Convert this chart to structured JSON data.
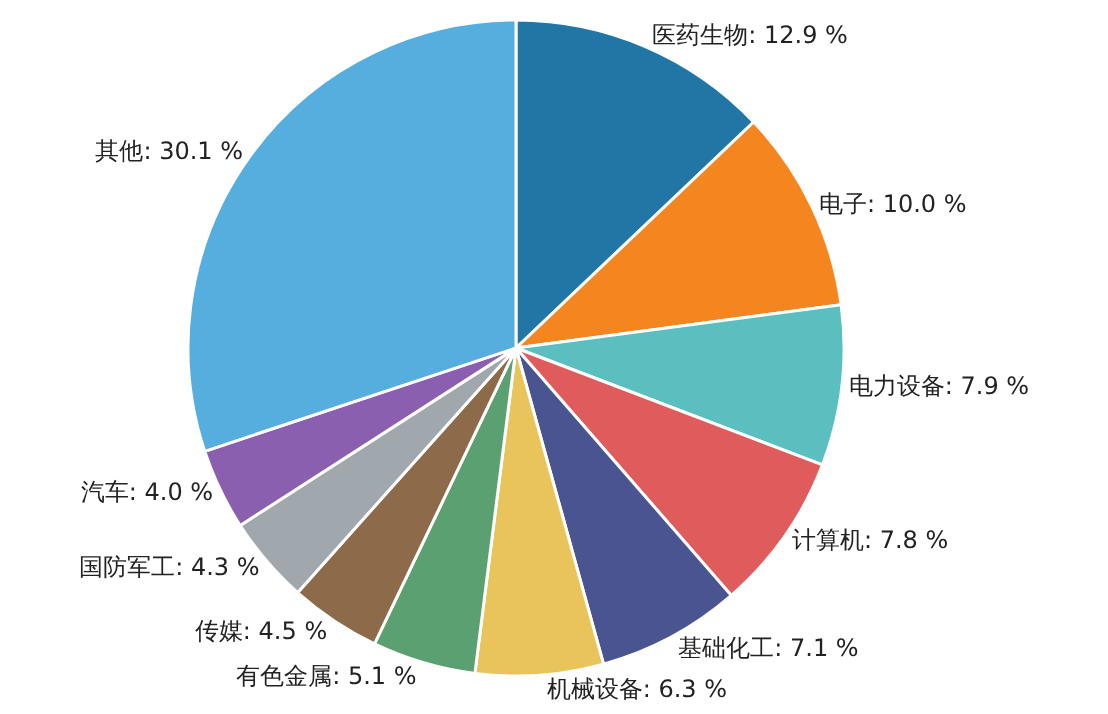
{
  "chart_data": {
    "type": "pie",
    "categories": [
      "医药生物",
      "电子",
      "电力设备",
      "计算机",
      "基础化工",
      "机械设备",
      "有色金属",
      "传媒",
      "国防军工",
      "汽车",
      "其他"
    ],
    "values": [
      12.9,
      10.0,
      7.9,
      7.8,
      7.1,
      6.3,
      5.1,
      4.5,
      4.3,
      4.0,
      30.1
    ],
    "value_labels": [
      "12.9 %",
      "10.0 %",
      "7.9 %",
      "7.8 %",
      "7.1 %",
      "6.3 %",
      "5.1 %",
      "4.5 %",
      "4.3 %",
      "4.0 %",
      "30.1 %"
    ],
    "colors": [
      "#2176a5",
      "#f5861f",
      "#5bbfc0",
      "#e05c5c",
      "#4a5490",
      "#e8c45a",
      "#5aa070",
      "#8c6a4a",
      "#a0a8ae",
      "#8a5fb0",
      "#55aedd"
    ],
    "legend": false
  }
}
